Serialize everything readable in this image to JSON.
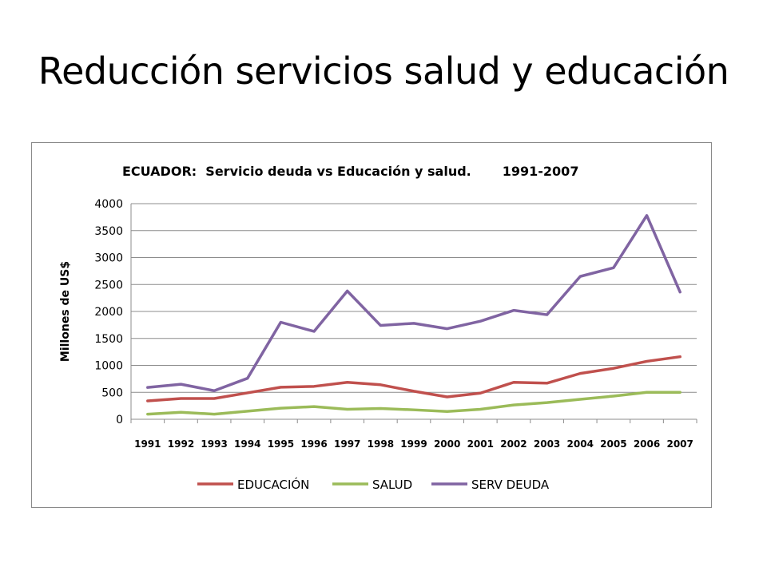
{
  "slide": {
    "title": "Reducción servicios salud y educación"
  },
  "chart_data": {
    "type": "line",
    "title": "ECUADOR:  Servicio deuda vs Educación y salud.       1991-2007",
    "xlabel": "",
    "ylabel": "Millones de US$",
    "ylim": [
      0,
      4000
    ],
    "yticks": [
      "0",
      "500",
      "1000",
      "1500",
      "2000",
      "2500",
      "3000",
      "3500",
      "4000"
    ],
    "categories": [
      "1991",
      "1992",
      "1993",
      "1994",
      "1995",
      "1996",
      "1997",
      "1998",
      "1999",
      "2000",
      "2001",
      "2002",
      "2003",
      "2004",
      "2005",
      "2006",
      "2007"
    ],
    "grid": true,
    "legend_position": "bottom",
    "series": [
      {
        "name": "EDUCACIÓN",
        "color": "#c0504d",
        "values": [
          340,
          385,
          385,
          490,
          595,
          610,
          685,
          640,
          520,
          415,
          485,
          685,
          670,
          850,
          945,
          1075,
          1160
        ]
      },
      {
        "name": "SALUD",
        "color": "#9bbb59",
        "values": [
          95,
          130,
          95,
          150,
          205,
          235,
          185,
          200,
          175,
          145,
          185,
          265,
          310,
          370,
          430,
          500,
          500
        ]
      },
      {
        "name": "SERV DEUDA",
        "color": "#8064a2",
        "values": [
          590,
          650,
          530,
          760,
          1800,
          1630,
          2380,
          1740,
          1780,
          1680,
          1820,
          2020,
          1940,
          2650,
          2810,
          3780,
          2360
        ]
      }
    ]
  }
}
